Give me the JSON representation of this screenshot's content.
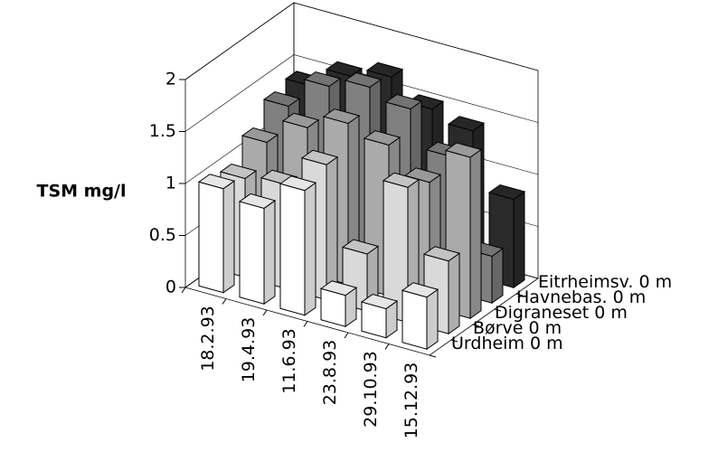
{
  "chart_data": {
    "type": "bar3d",
    "ylabel": "TSM mg/l",
    "categories": [
      "18.2.93",
      "19.4.93",
      "11.6.93",
      "23.8.93",
      "29.10.93",
      "15.12.93"
    ],
    "series": [
      {
        "name": "Urdheim 0 m",
        "color": "#ffffff",
        "values": [
          1.0,
          0.92,
          1.2,
          0.3,
          0.28,
          0.5
        ]
      },
      {
        "name": "Børve 0 m",
        "color": "#d9d9d9",
        "values": [
          0.95,
          1.0,
          1.3,
          0.55,
          1.3,
          0.7
        ]
      },
      {
        "name": "Digraneset 0 m",
        "color": "#aaaaaa",
        "values": [
          1.15,
          1.4,
          1.55,
          1.45,
          1.2,
          1.55
        ]
      },
      {
        "name": "Havnebas. 0 m",
        "color": "#808080",
        "values": [
          1.35,
          1.65,
          1.75,
          1.65,
          1.3,
          0.45
        ]
      },
      {
        "name": "Eitrheimsv. 0 m",
        "color": "#2a2a2a",
        "values": [
          1.4,
          1.6,
          1.7,
          1.5,
          1.4,
          0.85
        ]
      }
    ],
    "ylim": [
      0,
      2
    ],
    "yticks": [
      0,
      0.5,
      1,
      1.5,
      2
    ],
    "grid": true
  }
}
